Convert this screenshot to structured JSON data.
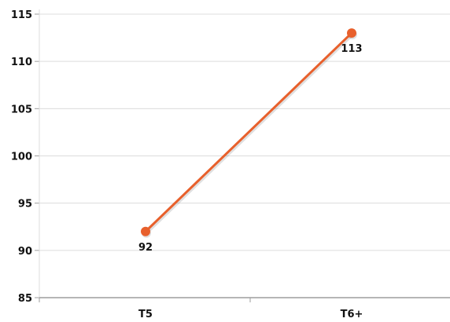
{
  "chart_data": {
    "type": "line",
    "title": "",
    "xlabel": "",
    "ylabel": "",
    "categories": [
      "T5",
      "T6+"
    ],
    "series": [
      {
        "name": "",
        "values": [
          92,
          113
        ],
        "color": "#e8602c"
      }
    ],
    "ylim": [
      85,
      115
    ],
    "yticks": [
      85,
      90,
      95,
      100,
      105,
      110,
      115
    ],
    "ytick_labels": [
      "85",
      "90",
      "95",
      "100",
      "105",
      "110",
      "115"
    ],
    "data_labels": [
      "92",
      "113"
    ],
    "grid": true,
    "legend": "none"
  }
}
